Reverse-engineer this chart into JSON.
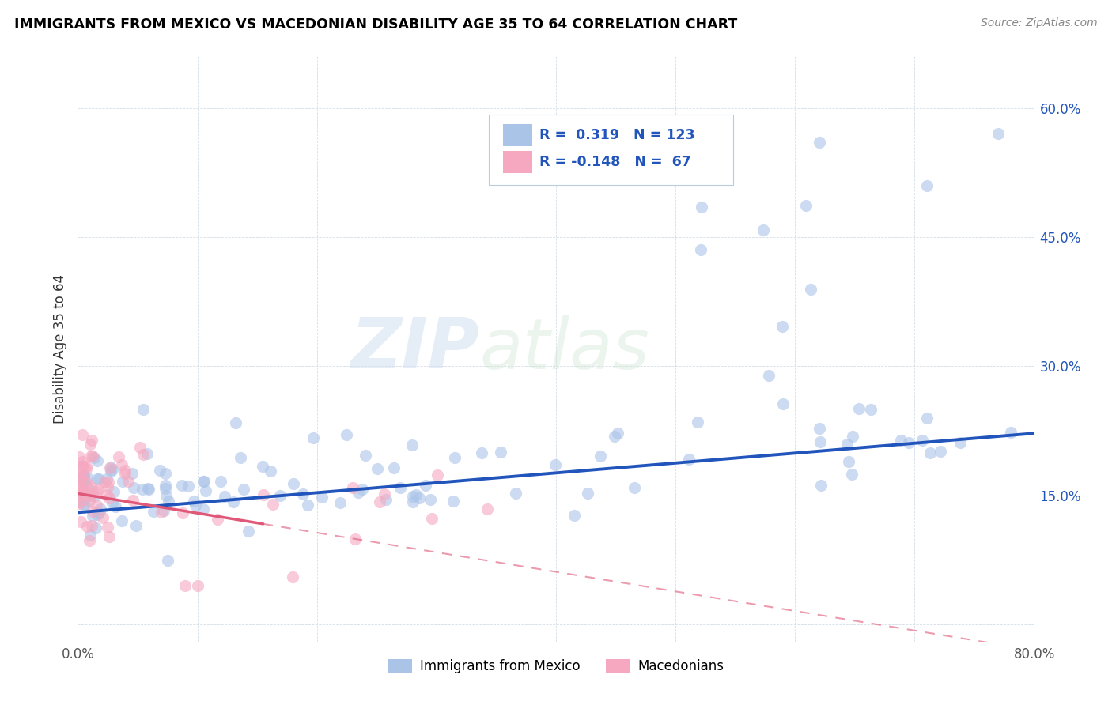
{
  "title": "IMMIGRANTS FROM MEXICO VS MACEDONIAN DISABILITY AGE 35 TO 64 CORRELATION CHART",
  "source": "Source: ZipAtlas.com",
  "ylabel": "Disability Age 35 to 64",
  "xlim": [
    0.0,
    0.8
  ],
  "ylim": [
    -0.02,
    0.66
  ],
  "blue_R": "0.319",
  "blue_N": "123",
  "pink_R": "-0.148",
  "pink_N": "67",
  "blue_color": "#aac4e8",
  "pink_color": "#f5a8c0",
  "blue_line_color": "#2255bb",
  "pink_line_color": "#e05878",
  "watermark_zip": "ZIP",
  "watermark_atlas": "atlas",
  "legend_label_blue": "Immigrants from Mexico",
  "legend_label_pink": "Macedonians",
  "blue_seed": 42,
  "pink_seed": 99
}
